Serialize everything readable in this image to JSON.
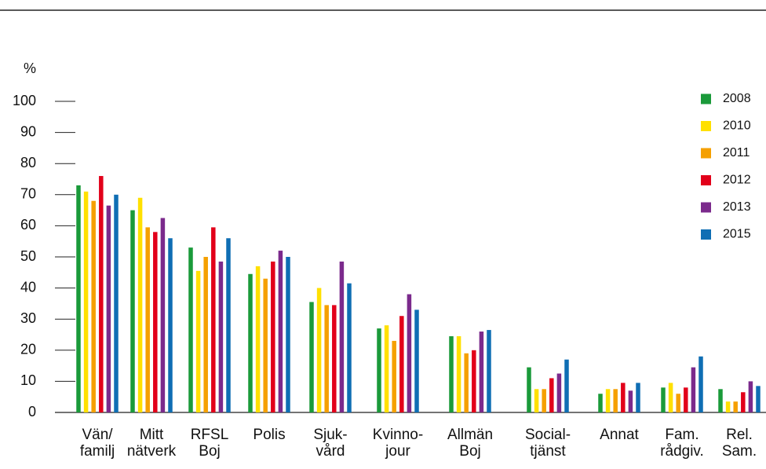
{
  "chart_data": {
    "type": "bar",
    "y_label": "%",
    "categories": [
      "Vän/\nfamilj",
      "Mitt\nnätverk",
      "RFSL\nBoj",
      "Polis",
      "Sjuk-\nvård",
      "Kvinno-\njour",
      "Allmän\nBoj",
      "Social-\ntjänst",
      "Annat",
      "Fam.\nrådgiv.",
      "Rel.\nSam."
    ],
    "series": [
      {
        "name": "2008",
        "color": "#1a9a3a",
        "values": [
          73,
          65,
          53,
          44.5,
          35.5,
          27,
          24.5,
          14.5,
          6,
          8,
          7.5
        ]
      },
      {
        "name": "2010",
        "color": "#ffe000",
        "values": [
          71,
          69,
          45.5,
          47,
          40,
          28,
          24.5,
          7.5,
          7.5,
          9.5,
          3.5
        ]
      },
      {
        "name": "2011",
        "color": "#f5a000",
        "values": [
          68,
          59.5,
          50,
          43,
          34.5,
          23,
          19,
          7.5,
          7.5,
          6,
          3.5
        ]
      },
      {
        "name": "2012",
        "color": "#e2001a",
        "values": [
          76,
          58,
          59.5,
          48.5,
          34.5,
          31,
          20,
          11,
          9.5,
          8,
          6.5
        ]
      },
      {
        "name": "2013",
        "color": "#7b2a8c",
        "values": [
          66.5,
          62.5,
          48.5,
          52,
          48.5,
          38,
          26,
          12.5,
          7,
          14.5,
          10
        ]
      },
      {
        "name": "2015",
        "color": "#0f6eb4",
        "values": [
          70,
          56,
          56,
          50,
          41.5,
          33,
          26.5,
          17,
          9.5,
          18,
          8.5
        ]
      }
    ],
    "ylim": [
      0,
      100
    ],
    "yticks": [
      0,
      10,
      20,
      30,
      40,
      50,
      60,
      70,
      80,
      90,
      100
    ],
    "legend": "upper right"
  }
}
